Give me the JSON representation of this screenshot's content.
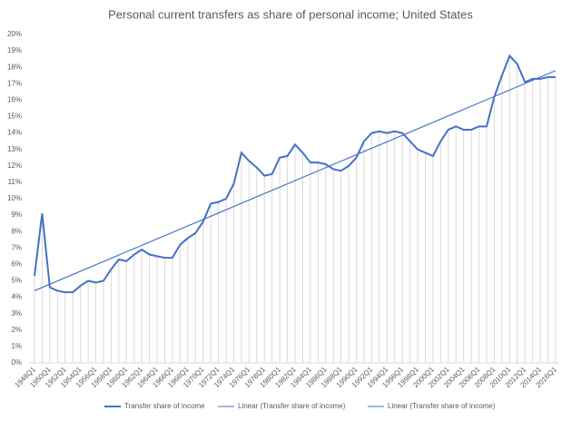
{
  "chart_data": {
    "type": "line",
    "title": "Personal current transfers as share of personal income; United States",
    "categories": [
      "1948Q1",
      null,
      "1950Q1",
      null,
      "1952Q1",
      null,
      "1954Q1",
      null,
      "1956Q1",
      null,
      "1958Q1",
      null,
      "1960Q1",
      null,
      "1962Q1",
      null,
      "1964Q1",
      null,
      "1966Q1",
      null,
      "1968Q1",
      null,
      "1970Q1",
      null,
      "1972Q1",
      null,
      "1974Q1",
      null,
      "1976Q1",
      null,
      "1978Q1",
      null,
      "1980Q1",
      null,
      "1982Q1",
      null,
      "1984Q1",
      null,
      "1986Q1",
      null,
      "1988Q1",
      null,
      "1990Q1",
      null,
      "1992Q1",
      null,
      "1994Q1",
      null,
      "1996Q1",
      null,
      "1998Q1",
      null,
      "2000Q1",
      null,
      "2002Q1",
      null,
      "2004Q1",
      null,
      "2006Q1",
      null,
      "2008Q1",
      null,
      "2010Q1",
      null,
      "2012Q1",
      null,
      "2014Q1",
      null,
      "2016Q1"
    ],
    "series": [
      {
        "name": "Transfer share of income",
        "color": "#4472c4",
        "values": [
          5.3,
          9.1,
          4.6,
          4.4,
          4.3,
          4.3,
          4.7,
          5.0,
          4.9,
          5.0,
          5.7,
          6.3,
          6.2,
          6.6,
          6.9,
          6.6,
          6.5,
          6.4,
          6.4,
          7.2,
          7.6,
          7.9,
          8.6,
          9.7,
          9.8,
          10.0,
          10.9,
          12.8,
          12.3,
          11.9,
          11.4,
          11.5,
          12.5,
          12.6,
          13.3,
          12.8,
          12.2,
          12.2,
          12.1,
          11.8,
          11.7,
          12.0,
          12.5,
          13.5,
          14.0,
          14.1,
          14.0,
          14.1,
          14.0,
          13.5,
          13.0,
          12.8,
          12.6,
          13.5,
          14.2,
          14.4,
          14.2,
          14.2,
          14.4,
          14.4,
          16.2,
          17.5,
          18.7,
          18.2,
          17.1,
          17.3,
          17.3,
          17.4,
          17.4
        ]
      }
    ],
    "trendlines": [
      {
        "name": "Linear  (Transfer share of income)",
        "color": "#4472c4",
        "start": 4.4,
        "end": 17.8
      },
      {
        "name": "Linear  (Transfer share of income)",
        "color": "#4472c4",
        "start": 4.4,
        "end": 17.8
      }
    ],
    "ylim": [
      0,
      20
    ],
    "yticks": [
      {
        "value": 0,
        "label": "0%"
      },
      {
        "value": 1,
        "label": "1%"
      },
      {
        "value": 2,
        "label": "2%"
      },
      {
        "value": 3,
        "label": "3%"
      },
      {
        "value": 4,
        "label": "4%"
      },
      {
        "value": 5,
        "label": "5%"
      },
      {
        "value": 6,
        "label": "6%"
      },
      {
        "value": 7,
        "label": "7%"
      },
      {
        "value": 8,
        "label": "8%"
      },
      {
        "value": 9,
        "label": "9%"
      },
      {
        "value": 10,
        "label": "10%"
      },
      {
        "value": 11,
        "label": "11%"
      },
      {
        "value": 12,
        "label": "12%"
      },
      {
        "value": 13,
        "label": "13%"
      },
      {
        "value": 14,
        "label": "14%"
      },
      {
        "value": 15,
        "label": "15%"
      },
      {
        "value": 16,
        "label": "16%"
      },
      {
        "value": 17,
        "label": "17%"
      },
      {
        "value": 18,
        "label": "18%"
      },
      {
        "value": 19,
        "label": "19%"
      },
      {
        "value": 20,
        "label": "20%"
      }
    ],
    "drop_lines": true,
    "drop_line_color": "#d9d9d9",
    "legend": "bottom"
  }
}
